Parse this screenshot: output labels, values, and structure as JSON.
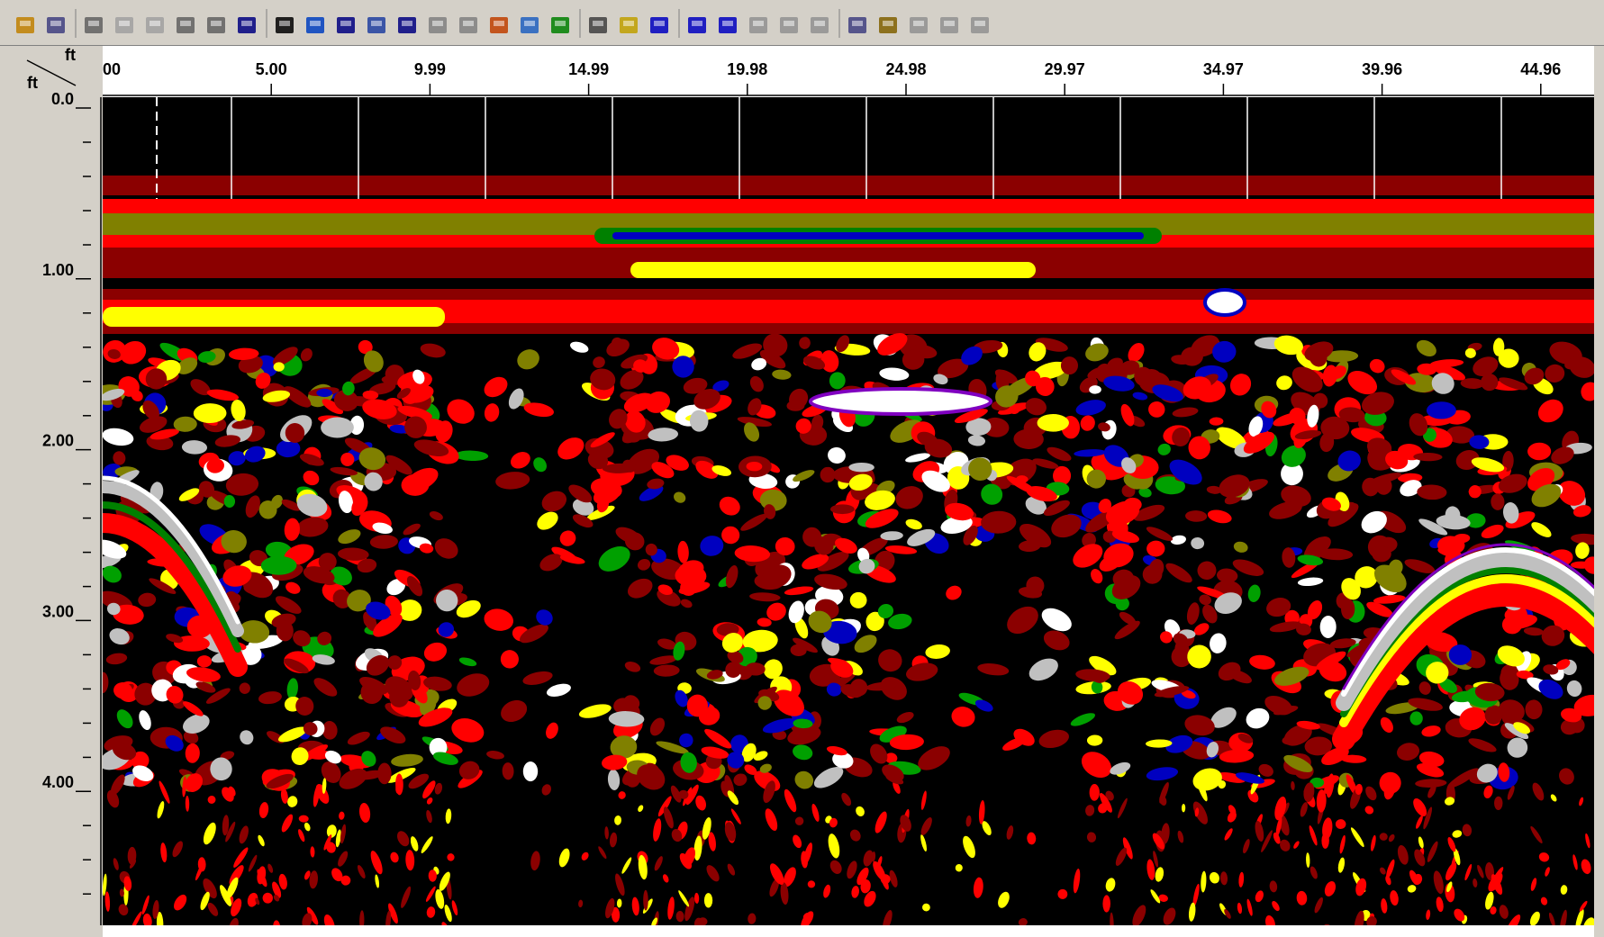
{
  "ruler": {
    "x_unit": "ft",
    "y_unit": "ft",
    "x_labels": [
      "00",
      "5.00",
      "9.99",
      "14.99",
      "19.98",
      "24.98",
      "29.97",
      "34.97",
      "39.96",
      "44.96"
    ],
    "y_labels": [
      "0.0",
      "1.00",
      "2.00",
      "3.00",
      "4.00"
    ]
  }
}
